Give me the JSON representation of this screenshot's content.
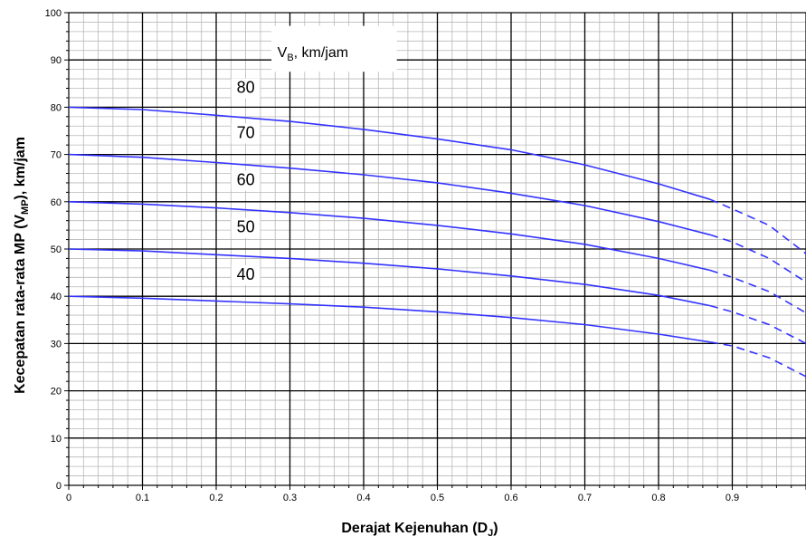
{
  "chart_data": {
    "type": "line",
    "xlabel_main": "Derajat Kejenuhan (D",
    "xlabel_sub": "J",
    "xlabel_end": ")",
    "ylabel_main": "Kecepatan rata-rata MP (V",
    "ylabel_sub": "MP",
    "ylabel_end": "), km/jam",
    "legend_main": "V",
    "legend_sub": "B",
    "legend_end": ", km/jam",
    "xlim": [
      0,
      1.0
    ],
    "ylim": [
      0,
      100
    ],
    "grid": true,
    "x_ticks": [
      "0",
      "0.1",
      "0.2",
      "0.3",
      "0.4",
      "0.5",
      "0.6",
      "0.7",
      "0.8",
      "0.9"
    ],
    "y_ticks": [
      "0",
      "10",
      "20",
      "30",
      "40",
      "50",
      "60",
      "70",
      "80",
      "90",
      "100"
    ],
    "line_color": "#3333ff",
    "series": [
      {
        "name": "80",
        "solid": [
          [
            0,
            80
          ],
          [
            0.1,
            79.5
          ],
          [
            0.2,
            78.3
          ],
          [
            0.3,
            77
          ],
          [
            0.4,
            75.3
          ],
          [
            0.5,
            73.3
          ],
          [
            0.6,
            71
          ],
          [
            0.7,
            67.8
          ],
          [
            0.8,
            63.8
          ],
          [
            0.87,
            60.5
          ]
        ],
        "dashed": [
          [
            0.87,
            60.5
          ],
          [
            0.9,
            58.5
          ],
          [
            0.95,
            55
          ],
          [
            1.0,
            49
          ]
        ]
      },
      {
        "name": "70",
        "solid": [
          [
            0,
            70
          ],
          [
            0.1,
            69.4
          ],
          [
            0.2,
            68.3
          ],
          [
            0.3,
            67.1
          ],
          [
            0.4,
            65.7
          ],
          [
            0.5,
            64
          ],
          [
            0.6,
            61.8
          ],
          [
            0.7,
            59.2
          ],
          [
            0.8,
            55.8
          ],
          [
            0.87,
            53
          ]
        ],
        "dashed": [
          [
            0.87,
            53
          ],
          [
            0.9,
            51.5
          ],
          [
            0.95,
            48
          ],
          [
            1.0,
            43
          ]
        ]
      },
      {
        "name": "60",
        "solid": [
          [
            0,
            60
          ],
          [
            0.1,
            59.5
          ],
          [
            0.2,
            58.7
          ],
          [
            0.3,
            57.7
          ],
          [
            0.4,
            56.5
          ],
          [
            0.5,
            55
          ],
          [
            0.6,
            53.2
          ],
          [
            0.7,
            51
          ],
          [
            0.8,
            48
          ],
          [
            0.87,
            45.5
          ]
        ],
        "dashed": [
          [
            0.87,
            45.5
          ],
          [
            0.9,
            44
          ],
          [
            0.95,
            41
          ],
          [
            1.0,
            36.5
          ]
        ]
      },
      {
        "name": "50",
        "solid": [
          [
            0,
            50
          ],
          [
            0.1,
            49.6
          ],
          [
            0.2,
            48.8
          ],
          [
            0.3,
            48
          ],
          [
            0.4,
            47
          ],
          [
            0.5,
            45.8
          ],
          [
            0.6,
            44.3
          ],
          [
            0.7,
            42.5
          ],
          [
            0.8,
            40.2
          ],
          [
            0.87,
            38
          ]
        ],
        "dashed": [
          [
            0.87,
            38
          ],
          [
            0.9,
            36.7
          ],
          [
            0.95,
            34
          ],
          [
            1.0,
            30
          ]
        ]
      },
      {
        "name": "40",
        "solid": [
          [
            0,
            40
          ],
          [
            0.1,
            39.6
          ],
          [
            0.2,
            39
          ],
          [
            0.3,
            38.4
          ],
          [
            0.4,
            37.7
          ],
          [
            0.5,
            36.7
          ],
          [
            0.6,
            35.5
          ],
          [
            0.7,
            34
          ],
          [
            0.8,
            32
          ],
          [
            0.87,
            30.3
          ]
        ],
        "dashed": [
          [
            0.87,
            30.3
          ],
          [
            0.9,
            29.5
          ],
          [
            0.95,
            27
          ],
          [
            1.0,
            23
          ]
        ]
      }
    ],
    "curve_labels": [
      {
        "text": "80",
        "x": 0.24,
        "y": 83
      },
      {
        "text": "70",
        "x": 0.24,
        "y": 73.5
      },
      {
        "text": "60",
        "x": 0.24,
        "y": 63.5
      },
      {
        "text": "50",
        "x": 0.24,
        "y": 53.5
      },
      {
        "text": "40",
        "x": 0.24,
        "y": 43.5
      }
    ]
  }
}
